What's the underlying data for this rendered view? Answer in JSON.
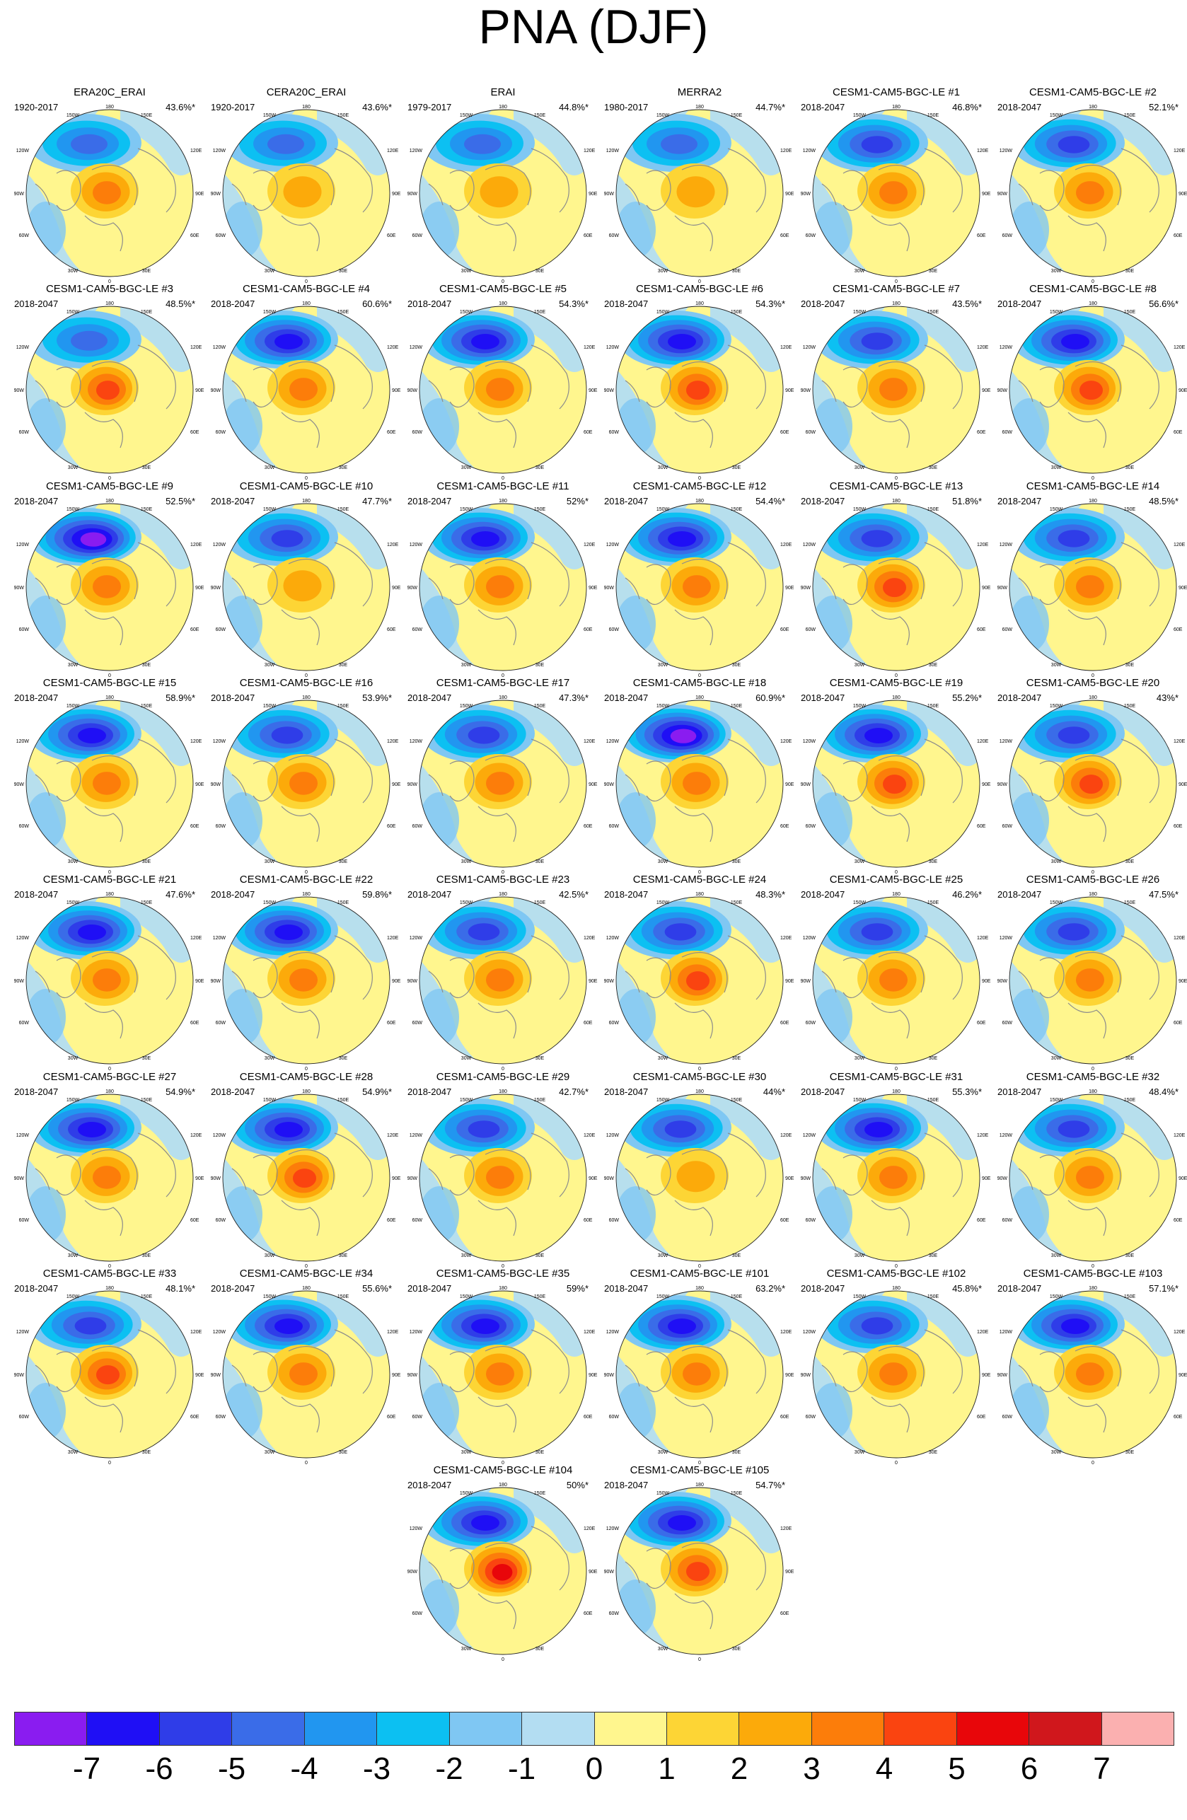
{
  "title": "PNA (DJF)",
  "map_labels": [
    "180",
    "150W",
    "150E",
    "120W",
    "120E",
    "90W",
    "90E",
    "60W",
    "60E",
    "30W",
    "30E",
    "0"
  ],
  "panels": [
    {
      "name": "ERA20C_ERAI",
      "period": "1920-2017",
      "pct": "43.6%*",
      "neg": 0.55,
      "pos": 0.45
    },
    {
      "name": "CERA20C_ERAI",
      "period": "1920-2017",
      "pct": "43.6%*",
      "neg": 0.55,
      "pos": 0.4
    },
    {
      "name": "ERAI",
      "period": "1979-2017",
      "pct": "44.8%*",
      "neg": 0.6,
      "pos": 0.35
    },
    {
      "name": "MERRA2",
      "period": "1980-2017",
      "pct": "44.7%*",
      "neg": 0.6,
      "pos": 0.3
    },
    {
      "name": "CESM1-CAM5-BGC-LE #1",
      "period": "2018-2047",
      "pct": "46.8%*",
      "neg": 0.7,
      "pos": 0.5
    },
    {
      "name": "CESM1-CAM5-BGC-LE #2",
      "period": "2018-2047",
      "pct": "52.1%*",
      "neg": 0.75,
      "pos": 0.45
    },
    {
      "name": "CESM1-CAM5-BGC-LE #3",
      "period": "2018-2047",
      "pct": "48.5%*",
      "neg": 0.6,
      "pos": 0.6
    },
    {
      "name": "CESM1-CAM5-BGC-LE #4",
      "period": "2018-2047",
      "pct": "60.6%*",
      "neg": 0.85,
      "pos": 0.5
    },
    {
      "name": "CESM1-CAM5-BGC-LE #5",
      "period": "2018-2047",
      "pct": "54.3%*",
      "neg": 0.85,
      "pos": 0.5
    },
    {
      "name": "CESM1-CAM5-BGC-LE #6",
      "period": "2018-2047",
      "pct": "54.3%*",
      "neg": 0.8,
      "pos": 0.6
    },
    {
      "name": "CESM1-CAM5-BGC-LE #7",
      "period": "2018-2047",
      "pct": "43.5%*",
      "neg": 0.65,
      "pos": 0.5
    },
    {
      "name": "CESM1-CAM5-BGC-LE #8",
      "period": "2018-2047",
      "pct": "56.6%*",
      "neg": 0.8,
      "pos": 0.7
    },
    {
      "name": "CESM1-CAM5-BGC-LE #9",
      "period": "2018-2047",
      "pct": "52.5%*",
      "neg": 0.95,
      "pos": 0.45
    },
    {
      "name": "CESM1-CAM5-BGC-LE #10",
      "period": "2018-2047",
      "pct": "47.7%*",
      "neg": 0.7,
      "pos": 0.35
    },
    {
      "name": "CESM1-CAM5-BGC-LE #11",
      "period": "2018-2047",
      "pct": "52%*",
      "neg": 0.8,
      "pos": 0.45
    },
    {
      "name": "CESM1-CAM5-BGC-LE #12",
      "period": "2018-2047",
      "pct": "54.4%*",
      "neg": 0.8,
      "pos": 0.55
    },
    {
      "name": "CESM1-CAM5-BGC-LE #13",
      "period": "2018-2047",
      "pct": "51.8%*",
      "neg": 0.75,
      "pos": 0.65
    },
    {
      "name": "CESM1-CAM5-BGC-LE #14",
      "period": "2018-2047",
      "pct": "48.5%*",
      "neg": 0.75,
      "pos": 0.45
    },
    {
      "name": "CESM1-CAM5-BGC-LE #15",
      "period": "2018-2047",
      "pct": "58.9%*",
      "neg": 0.85,
      "pos": 0.5
    },
    {
      "name": "CESM1-CAM5-BGC-LE #16",
      "period": "2018-2047",
      "pct": "53.9%*",
      "neg": 0.75,
      "pos": 0.45
    },
    {
      "name": "CESM1-CAM5-BGC-LE #17",
      "period": "2018-2047",
      "pct": "47.3%*",
      "neg": 0.75,
      "pos": 0.55
    },
    {
      "name": "CESM1-CAM5-BGC-LE #18",
      "period": "2018-2047",
      "pct": "60.9%*",
      "neg": 0.95,
      "pos": 0.55
    },
    {
      "name": "CESM1-CAM5-BGC-LE #19",
      "period": "2018-2047",
      "pct": "55.2%*",
      "neg": 0.85,
      "pos": 0.7
    },
    {
      "name": "CESM1-CAM5-BGC-LE #20",
      "period": "2018-2047",
      "pct": "43%*",
      "neg": 0.65,
      "pos": 0.65
    },
    {
      "name": "CESM1-CAM5-BGC-LE #21",
      "period": "2018-2047",
      "pct": "47.6%*",
      "neg": 0.8,
      "pos": 0.55
    },
    {
      "name": "CESM1-CAM5-BGC-LE #22",
      "period": "2018-2047",
      "pct": "59.8%*",
      "neg": 0.85,
      "pos": 0.5
    },
    {
      "name": "CESM1-CAM5-BGC-LE #23",
      "period": "2018-2047",
      "pct": "42.5%*",
      "neg": 0.7,
      "pos": 0.45
    },
    {
      "name": "CESM1-CAM5-BGC-LE #24",
      "period": "2018-2047",
      "pct": "48.3%*",
      "neg": 0.75,
      "pos": 0.65
    },
    {
      "name": "CESM1-CAM5-BGC-LE #25",
      "period": "2018-2047",
      "pct": "46.2%*",
      "neg": 0.75,
      "pos": 0.5
    },
    {
      "name": "CESM1-CAM5-BGC-LE #26",
      "period": "2018-2047",
      "pct": "47.5%*",
      "neg": 0.65,
      "pos": 0.45
    },
    {
      "name": "CESM1-CAM5-BGC-LE #27",
      "period": "2018-2047",
      "pct": "54.9%*",
      "neg": 0.8,
      "pos": 0.55
    },
    {
      "name": "CESM1-CAM5-BGC-LE #28",
      "period": "2018-2047",
      "pct": "54.9%*",
      "neg": 0.9,
      "pos": 0.6
    },
    {
      "name": "CESM1-CAM5-BGC-LE #29",
      "period": "2018-2047",
      "pct": "42.7%*",
      "neg": 0.75,
      "pos": 0.45
    },
    {
      "name": "CESM1-CAM5-BGC-LE #30",
      "period": "2018-2047",
      "pct": "44%*",
      "neg": 0.7,
      "pos": 0.4
    },
    {
      "name": "CESM1-CAM5-BGC-LE #31",
      "period": "2018-2047",
      "pct": "55.3%*",
      "neg": 0.8,
      "pos": 0.45
    },
    {
      "name": "CESM1-CAM5-BGC-LE #32",
      "period": "2018-2047",
      "pct": "48.4%*",
      "neg": 0.75,
      "pos": 0.45
    },
    {
      "name": "CESM1-CAM5-BGC-LE #33",
      "period": "2018-2047",
      "pct": "48.1%*",
      "neg": 0.7,
      "pos": 0.6
    },
    {
      "name": "CESM1-CAM5-BGC-LE #34",
      "period": "2018-2047",
      "pct": "55.6%*",
      "neg": 0.8,
      "pos": 0.5
    },
    {
      "name": "CESM1-CAM5-BGC-LE #35",
      "period": "2018-2047",
      "pct": "59%*",
      "neg": 0.9,
      "pos": 0.55
    },
    {
      "name": "CESM1-CAM5-BGC-LE #101",
      "period": "2018-2047",
      "pct": "63.2%*",
      "neg": 0.9,
      "pos": 0.55
    },
    {
      "name": "CESM1-CAM5-BGC-LE #102",
      "period": "2018-2047",
      "pct": "45.8%*",
      "neg": 0.7,
      "pos": 0.45
    },
    {
      "name": "CESM1-CAM5-BGC-LE #103",
      "period": "2018-2047",
      "pct": "57.1%*",
      "neg": 0.8,
      "pos": 0.55
    },
    {
      "name": "CESM1-CAM5-BGC-LE #104",
      "period": "2018-2047",
      "pct": "50%*",
      "neg": 0.8,
      "pos": 0.75
    },
    {
      "name": "CESM1-CAM5-BGC-LE #105",
      "period": "2018-2047",
      "pct": "54.7%*",
      "neg": 0.8,
      "pos": 0.7
    }
  ],
  "colorbar": {
    "colors": [
      "#8a1cf0",
      "#1f0ff5",
      "#2f3de8",
      "#3a6ce8",
      "#2196f0",
      "#0cc0f2",
      "#7fc7f3",
      "#b3ddf2",
      "#fff68e",
      "#fdd535",
      "#fcaa0a",
      "#fc7d0a",
      "#fa4410",
      "#e8060a",
      "#d0171c",
      "#fbb0b0"
    ],
    "labels": [
      "-7",
      "-6",
      "-5",
      "-4",
      "-3",
      "-2",
      "-1",
      "0",
      "1",
      "2",
      "3",
      "4",
      "5",
      "6",
      "7"
    ]
  }
}
